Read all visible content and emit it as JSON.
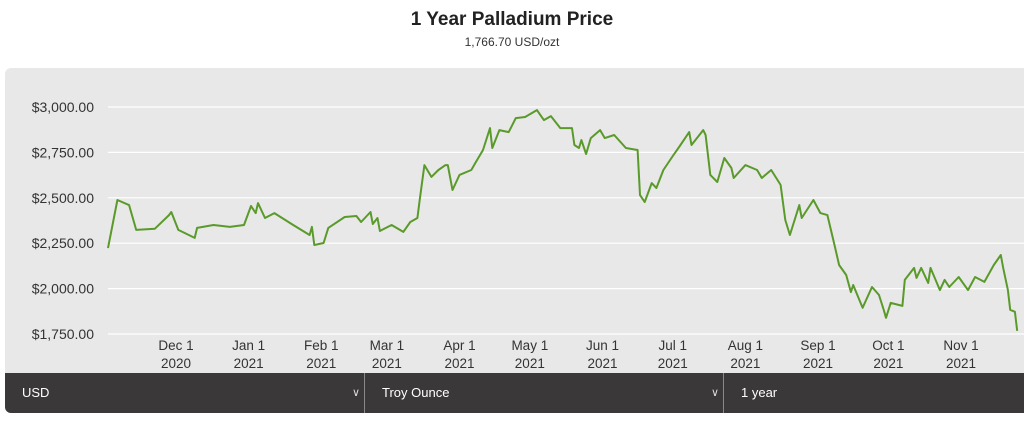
{
  "header": {
    "title": "1 Year Palladium Price",
    "subtitle": "1,766.70 USD/ozt"
  },
  "controls": {
    "currency": "USD",
    "unit": "Troy Ounce",
    "period": "1 year"
  },
  "chart_data": {
    "type": "line",
    "title": "1 Year Palladium Price",
    "subtitle": "1,766.70 USD/ozt",
    "xlabel": "",
    "ylabel": "",
    "ylim": [
      1750,
      3000
    ],
    "xlim": [
      "2020-11-02",
      "2021-11-25"
    ],
    "grid": true,
    "line_color": "#5a9a2a",
    "y_ticks": [
      "$1,750.00",
      "$2,000.00",
      "$2,250.00",
      "$2,500.00",
      "$2,750.00",
      "$3,000.00"
    ],
    "y_tick_values": [
      1750,
      2000,
      2250,
      2500,
      2750,
      3000
    ],
    "x_ticks": [
      {
        "date": "2020-12-01",
        "m": "Dec 1",
        "y": "2020"
      },
      {
        "date": "2021-01-01",
        "m": "Jan 1",
        "y": "2021"
      },
      {
        "date": "2021-02-01",
        "m": "Feb 1",
        "y": "2021"
      },
      {
        "date": "2021-03-01",
        "m": "Mar 1",
        "y": "2021"
      },
      {
        "date": "2021-04-01",
        "m": "Apr 1",
        "y": "2021"
      },
      {
        "date": "2021-05-01",
        "m": "May 1",
        "y": "2021"
      },
      {
        "date": "2021-06-01",
        "m": "Jun 1",
        "y": "2021"
      },
      {
        "date": "2021-07-01",
        "m": "Jul 1",
        "y": "2021"
      },
      {
        "date": "2021-08-01",
        "m": "Aug 1",
        "y": "2021"
      },
      {
        "date": "2021-09-01",
        "m": "Sep 1",
        "y": "2021"
      },
      {
        "date": "2021-10-01",
        "m": "Oct 1",
        "y": "2021"
      },
      {
        "date": "2021-11-01",
        "m": "Nov 1",
        "y": "2021"
      }
    ],
    "series": [
      {
        "points": [
          [
            "2020-11-02",
            2223
          ],
          [
            "2020-11-06",
            2488
          ],
          [
            "2020-11-11",
            2460
          ],
          [
            "2020-11-14",
            2323
          ],
          [
            "2020-11-22",
            2330
          ],
          [
            "2020-11-28",
            2405
          ],
          [
            "2020-11-29",
            2422
          ],
          [
            "2020-12-02",
            2323
          ],
          [
            "2020-12-09",
            2279
          ],
          [
            "2020-12-10",
            2334
          ],
          [
            "2020-12-17",
            2350
          ],
          [
            "2020-12-24",
            2340
          ],
          [
            "2020-12-30",
            2350
          ],
          [
            "2021-01-02",
            2455
          ],
          [
            "2021-01-04",
            2416
          ],
          [
            "2021-01-05",
            2471
          ],
          [
            "2021-01-08",
            2389
          ],
          [
            "2021-01-12",
            2416
          ],
          [
            "2021-01-20",
            2350
          ],
          [
            "2021-01-27",
            2295
          ],
          [
            "2021-01-28",
            2340
          ],
          [
            "2021-01-29",
            2240
          ],
          [
            "2021-02-02",
            2251
          ],
          [
            "2021-02-04",
            2334
          ],
          [
            "2021-02-11",
            2394
          ],
          [
            "2021-02-16",
            2400
          ],
          [
            "2021-02-18",
            2367
          ],
          [
            "2021-02-22",
            2422
          ],
          [
            "2021-02-23",
            2356
          ],
          [
            "2021-02-25",
            2389
          ],
          [
            "2021-02-26",
            2317
          ],
          [
            "2021-03-03",
            2350
          ],
          [
            "2021-03-08",
            2312
          ],
          [
            "2021-03-11",
            2367
          ],
          [
            "2021-03-14",
            2389
          ],
          [
            "2021-03-15",
            2488
          ],
          [
            "2021-03-17",
            2680
          ],
          [
            "2021-03-20",
            2615
          ],
          [
            "2021-03-23",
            2653
          ],
          [
            "2021-03-26",
            2680
          ],
          [
            "2021-03-27",
            2680
          ],
          [
            "2021-03-29",
            2543
          ],
          [
            "2021-04-01",
            2626
          ],
          [
            "2021-04-06",
            2653
          ],
          [
            "2021-04-08",
            2697
          ],
          [
            "2021-04-11",
            2763
          ],
          [
            "2021-04-14",
            2884
          ],
          [
            "2021-04-15",
            2774
          ],
          [
            "2021-04-18",
            2873
          ],
          [
            "2021-04-22",
            2862
          ],
          [
            "2021-04-25",
            2939
          ],
          [
            "2021-04-29",
            2945
          ],
          [
            "2021-05-04",
            2983
          ],
          [
            "2021-05-07",
            2928
          ],
          [
            "2021-05-10",
            2950
          ],
          [
            "2021-05-14",
            2884
          ],
          [
            "2021-05-19",
            2884
          ],
          [
            "2021-05-20",
            2791
          ],
          [
            "2021-05-22",
            2774
          ],
          [
            "2021-05-23",
            2818
          ],
          [
            "2021-05-25",
            2741
          ],
          [
            "2021-05-27",
            2829
          ],
          [
            "2021-05-31",
            2873
          ],
          [
            "2021-06-02",
            2829
          ],
          [
            "2021-06-06",
            2846
          ],
          [
            "2021-06-11",
            2774
          ],
          [
            "2021-06-16",
            2763
          ],
          [
            "2021-06-17",
            2515
          ],
          [
            "2021-06-19",
            2477
          ],
          [
            "2021-06-22",
            2581
          ],
          [
            "2021-06-24",
            2554
          ],
          [
            "2021-06-27",
            2653
          ],
          [
            "2021-07-01",
            2730
          ],
          [
            "2021-07-04",
            2785
          ],
          [
            "2021-07-08",
            2862
          ],
          [
            "2021-07-09",
            2791
          ],
          [
            "2021-07-14",
            2873
          ],
          [
            "2021-07-15",
            2846
          ],
          [
            "2021-07-17",
            2626
          ],
          [
            "2021-07-20",
            2587
          ],
          [
            "2021-07-23",
            2719
          ],
          [
            "2021-07-26",
            2664
          ],
          [
            "2021-07-27",
            2609
          ],
          [
            "2021-08-01",
            2680
          ],
          [
            "2021-08-06",
            2653
          ],
          [
            "2021-08-08",
            2609
          ],
          [
            "2021-08-12",
            2653
          ],
          [
            "2021-08-16",
            2571
          ],
          [
            "2021-08-18",
            2378
          ],
          [
            "2021-08-20",
            2295
          ],
          [
            "2021-08-24",
            2460
          ],
          [
            "2021-08-25",
            2389
          ],
          [
            "2021-08-30",
            2488
          ],
          [
            "2021-09-02",
            2416
          ],
          [
            "2021-09-05",
            2405
          ],
          [
            "2021-09-08",
            2240
          ],
          [
            "2021-09-10",
            2130
          ],
          [
            "2021-09-13",
            2075
          ],
          [
            "2021-09-15",
            1981
          ],
          [
            "2021-09-16",
            2020
          ],
          [
            "2021-09-20",
            1894
          ],
          [
            "2021-09-24",
            2009
          ],
          [
            "2021-09-27",
            1965
          ],
          [
            "2021-09-29",
            1883
          ],
          [
            "2021-09-30",
            1839
          ],
          [
            "2021-10-02",
            1921
          ],
          [
            "2021-10-07",
            1905
          ],
          [
            "2021-10-08",
            2048
          ],
          [
            "2021-10-12",
            2114
          ],
          [
            "2021-10-13",
            2059
          ],
          [
            "2021-10-15",
            2114
          ],
          [
            "2021-10-18",
            2031
          ],
          [
            "2021-10-19",
            2114
          ],
          [
            "2021-10-23",
            1992
          ],
          [
            "2021-10-25",
            2048
          ],
          [
            "2021-10-27",
            2009
          ],
          [
            "2021-10-31",
            2064
          ],
          [
            "2021-11-04",
            1992
          ],
          [
            "2021-11-07",
            2064
          ],
          [
            "2021-11-11",
            2037
          ],
          [
            "2021-11-15",
            2130
          ],
          [
            "2021-11-18",
            2185
          ],
          [
            "2021-11-19",
            2114
          ],
          [
            "2021-11-21",
            1992
          ],
          [
            "2021-11-22",
            1883
          ],
          [
            "2021-11-24",
            1872
          ],
          [
            "2021-11-25",
            1767
          ]
        ]
      }
    ]
  }
}
